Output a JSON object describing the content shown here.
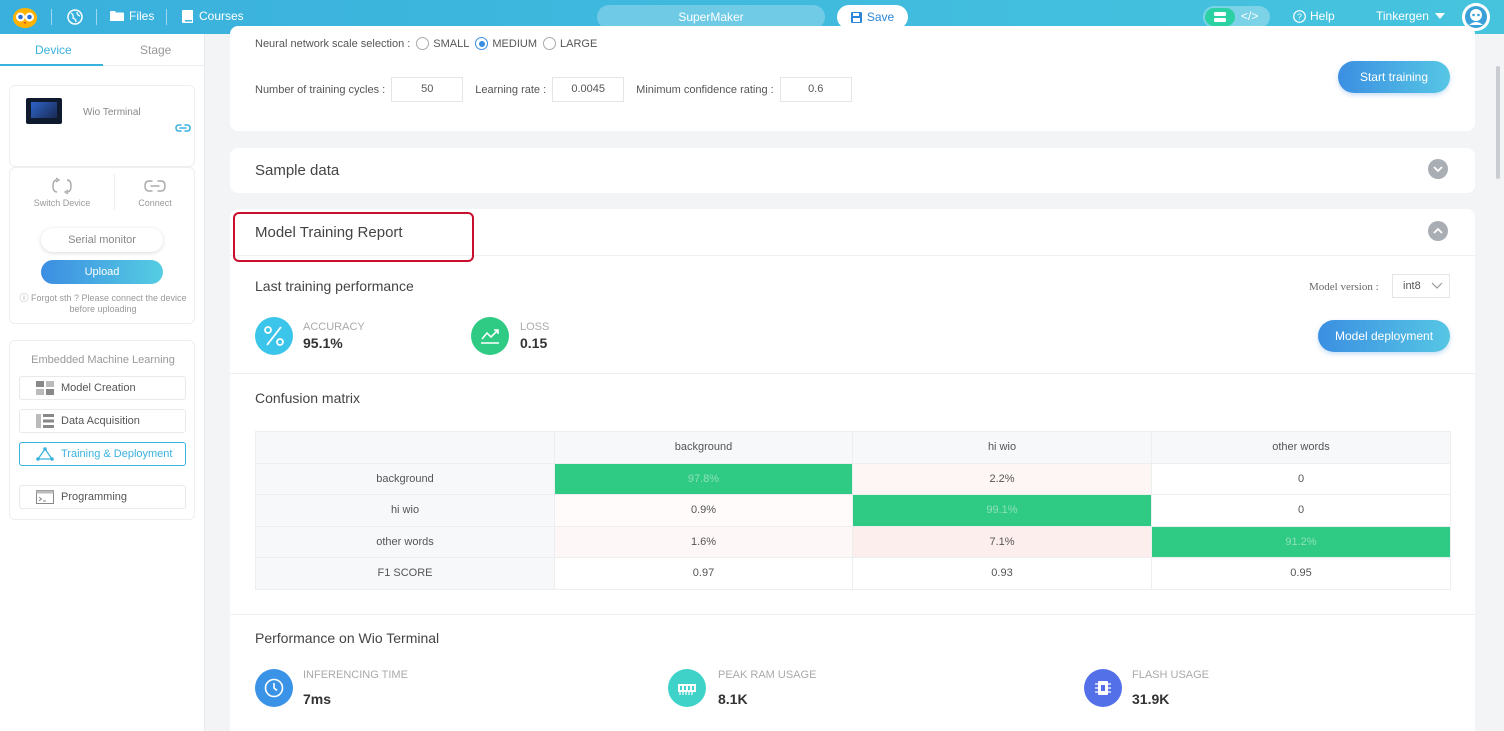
{
  "topbar": {
    "files": "Files",
    "courses": "Courses",
    "project_name": "SuperMaker",
    "save": "Save",
    "code_symbol": "</>",
    "help": "Help",
    "user": "Tinkergen"
  },
  "sidebar": {
    "tabs": [
      "Device",
      "Stage"
    ],
    "device_name": "Wio Terminal",
    "switch_device": "Switch Device",
    "connect": "Connect",
    "serial_monitor": "Serial monitor",
    "upload": "Upload",
    "hint_line1": "Forgot sth ? Please connect the device",
    "hint_line2": "before uploading",
    "section_title": "Embedded Machine Learning",
    "nav": [
      "Model Creation",
      "Data Acquisition",
      "Training & Deployment",
      "Programming"
    ]
  },
  "params": {
    "scale_label": "Neural network scale selection :",
    "scale_options": [
      "SMALL",
      "MEDIUM",
      "LARGE"
    ],
    "scale_selected": "MEDIUM",
    "cycles_label": "Number of training cycles :",
    "cycles_value": "50",
    "lr_label": "Learning rate :",
    "lr_value": "0.0045",
    "conf_label": "Minimum confidence rating :",
    "conf_value": "0.6",
    "start_training": "Start training"
  },
  "sample": {
    "title": "Sample data"
  },
  "report": {
    "title": "Model Training Report",
    "last_perf": "Last training performance",
    "model_version_label": "Model version :",
    "model_version": "int8",
    "accuracy_label": "ACCURACY",
    "accuracy_value": "95.1%",
    "loss_label": "LOSS",
    "loss_value": "0.15",
    "deploy": "Model deployment",
    "confusion_title": "Confusion matrix",
    "cm_columns": [
      "background",
      "hi wio",
      "other words"
    ],
    "cm_rows": [
      {
        "label": "background",
        "cells": [
          "97.8%",
          "2.2%",
          "0"
        ]
      },
      {
        "label": "hi wio",
        "cells": [
          "0.9%",
          "99.1%",
          "0"
        ]
      },
      {
        "label": "other words",
        "cells": [
          "1.6%",
          "7.1%",
          "91.2%"
        ]
      },
      {
        "label": "F1 SCORE",
        "cells": [
          "0.97",
          "0.93",
          "0.95"
        ]
      }
    ],
    "perf_title": "Performance on Wio Terminal",
    "inference_label": "INFERENCING TIME",
    "inference_value": "7ms",
    "ram_label": "PEAK RAM USAGE",
    "ram_value": "8.1K",
    "flash_label": "FLASH USAGE",
    "flash_value": "31.9K"
  },
  "colors": {
    "accent": "#3ab2de",
    "diag_green": "#2fca84",
    "offdiag_light": "#fdf6f4",
    "offdiag_pink": "#fdeeee",
    "highlight": "#c8102e"
  }
}
